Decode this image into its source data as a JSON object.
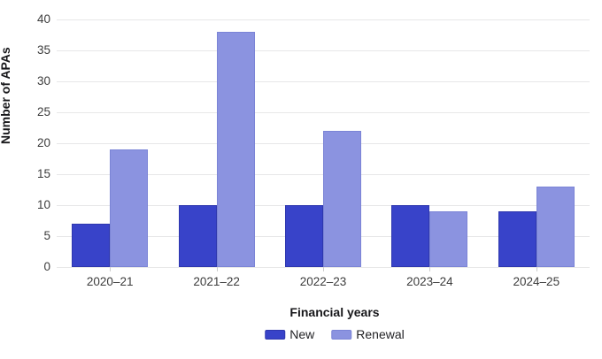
{
  "chart_data": {
    "type": "bar",
    "title": "",
    "categories": [
      "2020–21",
      "2021–22",
      "2022–23",
      "2023–24",
      "2024–25"
    ],
    "series": [
      {
        "name": "New",
        "color": "#3843c9",
        "border_color": "#2e37ae",
        "values": [
          7,
          10,
          10,
          10,
          9
        ]
      },
      {
        "name": "Renewal",
        "color": "#8b93e0",
        "border_color": "#7b84d6",
        "values": [
          19,
          38,
          22,
          9,
          13
        ]
      }
    ],
    "xlabel": "Financial years",
    "ylabel": "Number of APAs",
    "ylim": [
      0,
      40
    ],
    "yticks": [
      0,
      5,
      10,
      15,
      20,
      25,
      30,
      35,
      40
    ],
    "grid": true,
    "legend_position": "bottom"
  },
  "colors": {
    "background": "#ffffff",
    "gridline": "#e7e7e8",
    "tick_label": "#3c3c3c",
    "axis_title": "#17171a",
    "tick_mark": "#cccccc"
  }
}
